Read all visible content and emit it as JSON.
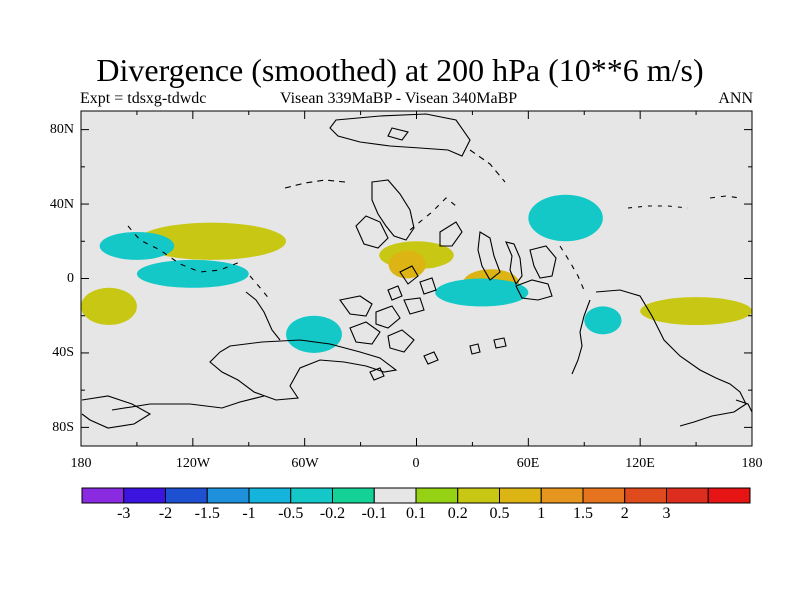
{
  "title": "Divergence (smoothed) at 200 hPa (10**6 m/s)",
  "left_label": "Expt = tdsxg-tdwdc",
  "center_label": "Visean 339MaBP - Visean   340MaBP",
  "right_label": "ANN",
  "axes": {
    "lat_ticks": [
      "80N",
      "40N",
      "0",
      "40S",
      "80S"
    ],
    "lon_ticks": [
      "180",
      "120W",
      "60W",
      "0",
      "60E",
      "120E",
      "180"
    ]
  },
  "colorbar": {
    "colors": [
      "#8a2be2",
      "#3c14e0",
      "#1e50d2",
      "#1e90dc",
      "#14b4dc",
      "#14c8c8",
      "#14d296",
      "#e6e6e6",
      "#96d214",
      "#c8c814",
      "#dcb414",
      "#e6961e",
      "#e6731e",
      "#e04b1e",
      "#dc2d1e",
      "#e61414"
    ],
    "labels": [
      "-3",
      "-2",
      "-1.5",
      "-1",
      "-0.5",
      "-0.2",
      "-0.1",
      "0.1",
      "0.2",
      "0.5",
      "1",
      "1.5",
      "2",
      "3"
    ]
  },
  "chart_data": {
    "type": "heatmap",
    "variable": "Divergence (smoothed)",
    "level": "200 hPa",
    "units": "10**6 m/s",
    "experiment": "Expt = tdsxg-tdwdc",
    "comparison": "Visean 339MaBP - Visean   340MaBP",
    "season": "ANN",
    "xlim": [
      -180,
      180
    ],
    "ylim": [
      -90,
      90
    ],
    "contour_levels": [
      -3,
      -2,
      -1.5,
      -1,
      -0.5,
      -0.2,
      -0.1,
      0.1,
      0.2,
      0.5,
      1,
      1.5,
      2,
      3
    ],
    "background": "#e6e6e6",
    "features": [
      {
        "name": "pos-band-north-pacific",
        "lon": [
          -150,
          -70
        ],
        "lat": [
          10,
          30
        ],
        "value": 0.3
      },
      {
        "name": "pos-band-north-atlantic",
        "lon": [
          -20,
          20
        ],
        "lat": [
          5,
          20
        ],
        "value": 0.5
      },
      {
        "name": "pos-central-africa",
        "lon": [
          -15,
          5
        ],
        "lat": [
          0,
          15
        ],
        "value": 1.0
      },
      {
        "name": "pos-indian-tropics",
        "lon": [
          25,
          55
        ],
        "lat": [
          -10,
          5
        ],
        "value": 1.0
      },
      {
        "name": "pos-south-pacific-west",
        "lon": [
          -180,
          -150
        ],
        "lat": [
          -25,
          -5
        ],
        "value": 0.5
      },
      {
        "name": "pos-south-pacific-east",
        "lon": [
          120,
          180
        ],
        "lat": [
          -25,
          -10
        ],
        "value": 0.3
      },
      {
        "name": "neg-tropics-pacific",
        "lon": [
          -150,
          -90
        ],
        "lat": [
          -5,
          10
        ],
        "value": -0.3
      },
      {
        "name": "neg-indian-ocean",
        "lon": [
          10,
          60
        ],
        "lat": [
          -15,
          0
        ],
        "value": -0.4
      },
      {
        "name": "neg-north-pacific-east",
        "lon": [
          60,
          100
        ],
        "lat": [
          20,
          45
        ],
        "value": -0.3
      },
      {
        "name": "neg-south-atlantic",
        "lon": [
          -70,
          -40
        ],
        "lat": [
          -40,
          -20
        ],
        "value": -0.3
      },
      {
        "name": "neg-south-indian",
        "lon": [
          90,
          110
        ],
        "lat": [
          -30,
          -15
        ],
        "value": -0.3
      },
      {
        "name": "neg-north-band-west",
        "lon": [
          -170,
          -130
        ],
        "lat": [
          10,
          25
        ],
        "value": -0.2
      }
    ]
  }
}
